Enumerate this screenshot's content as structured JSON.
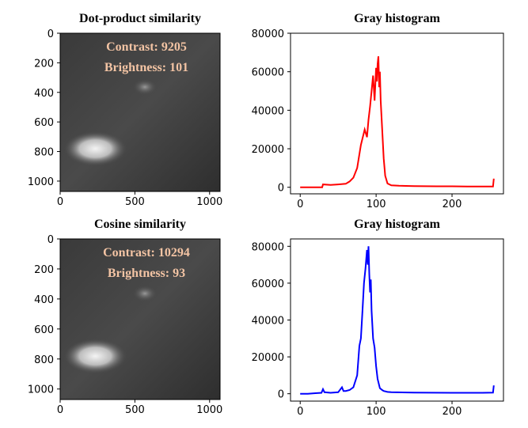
{
  "chart_data": [
    {
      "type": "image",
      "title": "Dot-product similarity",
      "annotations": [
        "Contrast: 9205",
        "Brightness: 101"
      ],
      "xlim": [
        0,
        1070
      ],
      "ylim": [
        1070,
        0
      ],
      "xticks": [
        0,
        500,
        1000
      ],
      "yticks": [
        0,
        200,
        400,
        600,
        800,
        1000
      ]
    },
    {
      "type": "line",
      "title": "Gray histogram",
      "color": "#ff0000",
      "x": [
        0,
        10,
        20,
        29,
        30,
        40,
        50,
        60,
        65,
        70,
        75,
        80,
        85,
        88,
        90,
        92,
        94,
        96,
        98,
        100,
        101,
        102,
        103,
        104,
        105,
        106,
        108,
        110,
        112,
        115,
        120,
        130,
        150,
        180,
        200,
        220,
        240,
        254,
        255
      ],
      "values": [
        0,
        0,
        0,
        0,
        1500,
        1200,
        1500,
        1800,
        3000,
        5000,
        10000,
        22000,
        30000,
        26000,
        35000,
        42000,
        50000,
        58000,
        45000,
        62000,
        55000,
        64000,
        68000,
        52000,
        60000,
        45000,
        30000,
        15000,
        6000,
        2000,
        1000,
        800,
        600,
        500,
        500,
        400,
        400,
        400,
        4500
      ],
      "xlim": [
        -12.75,
        267.75
      ],
      "ylim": [
        -3400,
        80000
      ],
      "xticks": [
        0,
        100,
        200
      ],
      "yticks": [
        0,
        20000,
        40000,
        60000,
        80000
      ]
    },
    {
      "type": "image",
      "title": "Cosine similarity",
      "annotations": [
        "Contrast: 10294",
        "Brightness: 93"
      ],
      "xlim": [
        0,
        1070
      ],
      "ylim": [
        1070,
        0
      ],
      "xticks": [
        0,
        500,
        1000
      ],
      "yticks": [
        0,
        200,
        400,
        600,
        800,
        1000
      ]
    },
    {
      "type": "line",
      "title": "Gray histogram",
      "color": "#0000ff",
      "x": [
        0,
        10,
        20,
        28,
        30,
        32,
        40,
        50,
        55,
        57,
        60,
        65,
        70,
        75,
        78,
        80,
        82,
        84,
        86,
        88,
        89,
        90,
        91,
        92,
        93,
        94,
        96,
        98,
        100,
        102,
        105,
        108,
        110,
        115,
        120,
        150,
        200,
        240,
        254,
        255
      ],
      "values": [
        0,
        0,
        300,
        500,
        2500,
        800,
        500,
        800,
        3500,
        1500,
        1500,
        2000,
        3500,
        10000,
        26000,
        30000,
        45000,
        60000,
        68000,
        78000,
        70000,
        80000,
        65000,
        55000,
        62000,
        45000,
        30000,
        25000,
        15000,
        8000,
        3000,
        2000,
        1500,
        1000,
        800,
        600,
        500,
        500,
        600,
        4500
      ],
      "xlim": [
        -12.75,
        267.75
      ],
      "ylim": [
        -4000,
        84000
      ],
      "xticks": [
        0,
        100,
        200
      ],
      "yticks": [
        0,
        20000,
        40000,
        60000,
        80000
      ]
    }
  ]
}
